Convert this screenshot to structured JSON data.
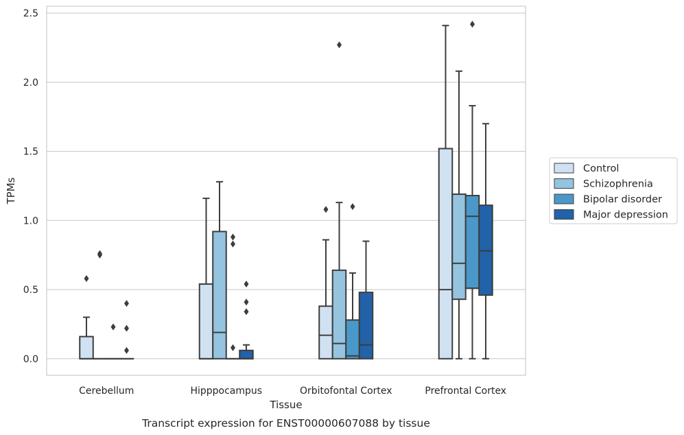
{
  "chart_data": {
    "type": "box",
    "title": "",
    "caption": "Transcript expression for ENST00000607088 by tissue",
    "xlabel": "Tissue",
    "ylabel": "TPMs",
    "ylim": [
      -0.12,
      2.55
    ],
    "yticks": [
      0.0,
      0.5,
      1.0,
      1.5,
      2.0,
      2.5
    ],
    "ytick_labels": [
      "0.0",
      "0.5",
      "1.0",
      "1.5",
      "2.0",
      "2.5"
    ],
    "grid": "horizontal",
    "legend_position": "right",
    "categories": [
      "Cerebellum",
      "Hipppocampus",
      "Orbitofontal Cortex",
      "Prefrontal Cortex"
    ],
    "series": [
      {
        "name": "Control",
        "color": "#d0e1f2",
        "boxes": [
          {
            "q1": 0.0,
            "median": 0.0,
            "q3": 0.16,
            "whisker_low": 0.0,
            "whisker_high": 0.3,
            "outliers": [
              0.58
            ]
          },
          {
            "q1": 0.0,
            "median": 0.0,
            "q3": 0.54,
            "whisker_low": 0.0,
            "whisker_high": 1.16,
            "outliers": []
          },
          {
            "q1": 0.0,
            "median": 0.17,
            "q3": 0.38,
            "whisker_low": 0.0,
            "whisker_high": 0.86,
            "outliers": [
              1.08
            ]
          },
          {
            "q1": 0.0,
            "median": 0.5,
            "q3": 1.52,
            "whisker_low": 0.0,
            "whisker_high": 2.41,
            "outliers": []
          }
        ]
      },
      {
        "name": "Schizophrenia",
        "color": "#94c4df",
        "boxes": [
          {
            "q1": 0.0,
            "median": 0.0,
            "q3": 0.0,
            "whisker_low": 0.0,
            "whisker_high": 0.0,
            "outliers": [
              0.75,
              0.76
            ]
          },
          {
            "q1": 0.0,
            "median": 0.19,
            "q3": 0.92,
            "whisker_low": 0.0,
            "whisker_high": 1.28,
            "outliers": []
          },
          {
            "q1": 0.0,
            "median": 0.11,
            "q3": 0.64,
            "whisker_low": 0.0,
            "whisker_high": 1.13,
            "outliers": [
              2.27
            ]
          },
          {
            "q1": 0.43,
            "median": 0.69,
            "q3": 1.19,
            "whisker_low": 0.0,
            "whisker_high": 2.08,
            "outliers": []
          }
        ]
      },
      {
        "name": "Bipolar disorder",
        "color": "#4a98c9",
        "boxes": [
          {
            "q1": 0.0,
            "median": 0.0,
            "q3": 0.0,
            "whisker_low": 0.0,
            "whisker_high": 0.0,
            "outliers": [
              0.23
            ]
          },
          {
            "q1": 0.0,
            "median": 0.0,
            "q3": 0.0,
            "whisker_low": 0.0,
            "whisker_high": 0.0,
            "outliers": [
              0.08,
              0.83,
              0.88
            ]
          },
          {
            "q1": 0.0,
            "median": 0.02,
            "q3": 0.28,
            "whisker_low": 0.0,
            "whisker_high": 0.62,
            "outliers": [
              1.1
            ]
          },
          {
            "q1": 0.51,
            "median": 1.03,
            "q3": 1.18,
            "whisker_low": 0.0,
            "whisker_high": 1.83,
            "outliers": [
              2.42
            ]
          }
        ]
      },
      {
        "name": "Major depression",
        "color": "#2262a8",
        "boxes": [
          {
            "q1": 0.0,
            "median": 0.0,
            "q3": 0.0,
            "whisker_low": 0.0,
            "whisker_high": 0.0,
            "outliers": [
              0.06,
              0.22,
              0.4
            ]
          },
          {
            "q1": 0.0,
            "median": 0.0,
            "q3": 0.06,
            "whisker_low": 0.0,
            "whisker_high": 0.1,
            "outliers": [
              0.34,
              0.41,
              0.54
            ]
          },
          {
            "q1": 0.0,
            "median": 0.1,
            "q3": 0.48,
            "whisker_low": 0.0,
            "whisker_high": 0.85,
            "outliers": []
          },
          {
            "q1": 0.46,
            "median": 0.78,
            "q3": 1.11,
            "whisker_low": 0.0,
            "whisker_high": 1.7,
            "outliers": []
          }
        ]
      }
    ]
  }
}
